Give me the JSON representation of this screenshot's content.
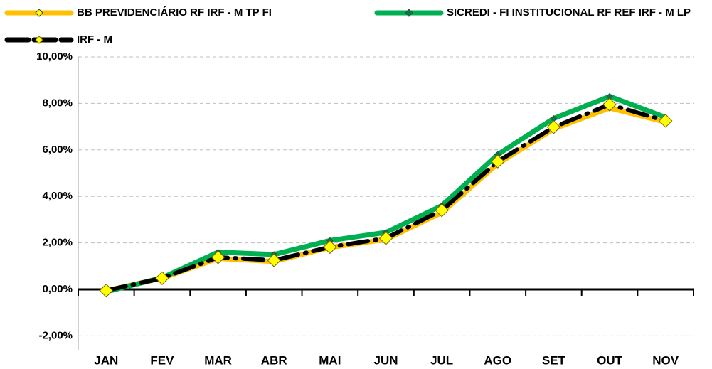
{
  "chart_data": {
    "type": "line",
    "categories": [
      "JAN",
      "FEV",
      "MAR",
      "ABR",
      "MAI",
      "JUN",
      "JUL",
      "AGO",
      "SET",
      "OUT",
      "NOV"
    ],
    "series": [
      {
        "name": "BB PREVIDENCIÁRIO RF IRF - M TP FI",
        "color": "#ffc000",
        "marker_color": "#ffff00",
        "values": [
          -0.05,
          0.48,
          1.33,
          1.2,
          1.8,
          2.15,
          3.3,
          5.4,
          6.9,
          7.8,
          7.2
        ]
      },
      {
        "name": "SICREDI - FI INSTITUCIONAL RF REF IRF - M LP",
        "color": "#00b050",
        "marker_color": "#008040",
        "values": [
          -0.1,
          0.5,
          1.6,
          1.5,
          2.1,
          2.45,
          3.6,
          5.8,
          7.35,
          8.3,
          7.4
        ]
      },
      {
        "name": "IRF - M",
        "color": "#000000",
        "marker_color": "#ffff00",
        "values": [
          -0.05,
          0.48,
          1.38,
          1.25,
          1.82,
          2.2,
          3.4,
          5.5,
          6.98,
          7.95,
          7.25
        ]
      }
    ],
    "ylim": [
      -2.6,
      10
    ],
    "yticks": [
      {
        "value": -2,
        "label": "-2,00%"
      },
      {
        "value": 0,
        "label": "0,00%"
      },
      {
        "value": 2,
        "label": "2,00%"
      },
      {
        "value": 4,
        "label": "4,00%"
      },
      {
        "value": 6,
        "label": "6,00%"
      },
      {
        "value": 8,
        "label": "8,00%"
      },
      {
        "value": 10,
        "label": "10,00%"
      }
    ],
    "grid": true
  }
}
